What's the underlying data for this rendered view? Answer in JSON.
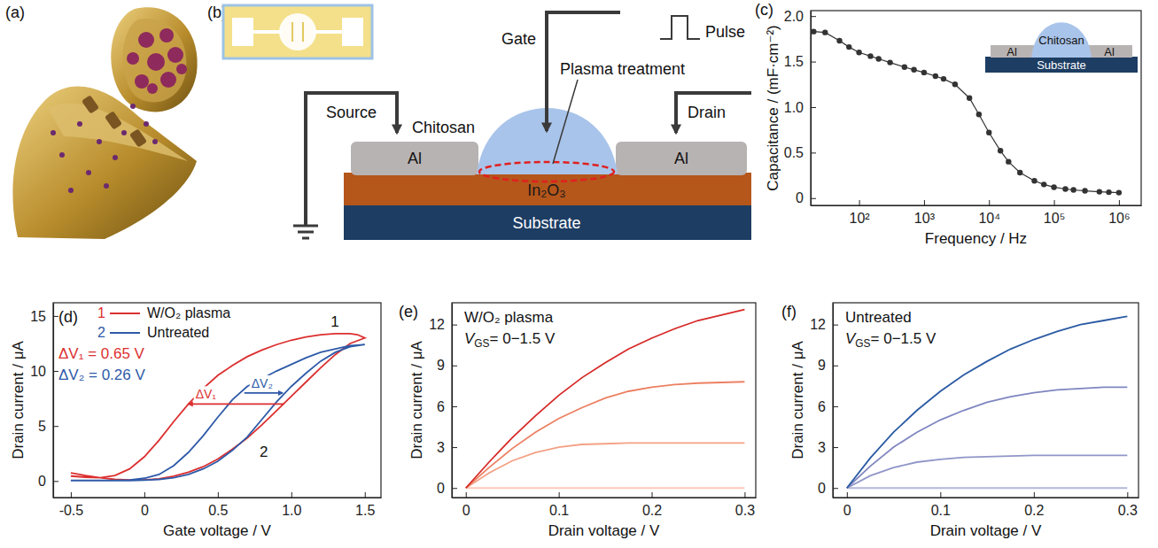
{
  "diagram_a": {
    "panel": "(a)"
  },
  "diagram_b": {
    "panel": "(b)",
    "labels": {
      "source": "Source",
      "gate": "Gate",
      "pulse": "Pulse",
      "plasma": "Plasma treatment",
      "chitosan": "Chitosan",
      "drain": "Drain",
      "al_left": "Al",
      "al_right": "Al",
      "semiconductor": "In₂O₃",
      "substrate": "Substrate"
    }
  },
  "chart_data": [
    {
      "panel": "(c)",
      "type": "line",
      "marker": "circle",
      "color": "#333333",
      "xlabel": "Frequency / Hz",
      "ylabel": "Capacitance / (mF·cm⁻²)",
      "log": "x",
      "x": [
        20,
        30,
        50,
        70,
        100,
        150,
        200,
        300,
        500,
        700,
        1000,
        1500,
        2000,
        3000,
        5000,
        7000,
        10000,
        15000,
        20000,
        30000,
        50000,
        70000,
        100000,
        150000,
        200000,
        300000,
        500000,
        700000,
        1000000
      ],
      "values": [
        1.83,
        1.82,
        1.73,
        1.66,
        1.6,
        1.56,
        1.53,
        1.49,
        1.44,
        1.41,
        1.38,
        1.34,
        1.31,
        1.25,
        1.1,
        0.92,
        0.72,
        0.52,
        0.4,
        0.28,
        0.19,
        0.15,
        0.12,
        0.1,
        0.09,
        0.08,
        0.07,
        0.065,
        0.06
      ],
      "xlim": [
        18,
        2200000
      ],
      "ylim": [
        -0.08,
        2.06
      ],
      "xticks": [
        {
          "value": 100,
          "label": "10²"
        },
        {
          "value": 1000,
          "label": "10³"
        },
        {
          "value": 10000,
          "label": "10⁴"
        },
        {
          "value": 100000,
          "label": "10⁵"
        },
        {
          "value": 1000000,
          "label": "10⁶"
        }
      ],
      "yticks": [
        0,
        0.5,
        {
          "value": 1,
          "label": "1.0"
        },
        1.5,
        {
          "value": 2,
          "label": "2.0"
        }
      ],
      "annotations": [
        "Al",
        "Chitosan",
        "Al",
        "Substrate"
      ]
    },
    {
      "panel": "(d)",
      "type": "line",
      "xlabel": "Gate voltage / V",
      "ylabel": "Drain current / μA",
      "legend": "upper left",
      "x": [
        -0.5,
        -0.4,
        -0.3,
        -0.2,
        -0.1,
        0,
        0.1,
        0.2,
        0.3,
        0.4,
        0.5,
        0.6,
        0.7,
        0.8,
        0.9,
        1.0,
        1.1,
        1.2,
        1.3,
        1.4,
        1.5,
        1.45,
        1.4,
        1.3,
        1.2,
        1.1,
        1.0,
        0.9,
        0.8,
        0.7,
        0.6,
        0.5,
        0.4,
        0.3,
        0.2,
        0.1,
        0,
        -0.1,
        -0.2,
        -0.3,
        -0.4,
        -0.5
      ],
      "series": [
        {
          "name": "W/O₂ plasma",
          "label": "1",
          "color": "#dc2f2f",
          "values": [
            0.75,
            0.5,
            0.3,
            0.15,
            0.1,
            0.1,
            0.2,
            0.45,
            0.8,
            1.3,
            2.0,
            2.9,
            3.9,
            5.1,
            6.4,
            7.7,
            9.0,
            10.3,
            11.5,
            12.5,
            13.0,
            13.3,
            13.4,
            13.4,
            13.3,
            13.1,
            12.8,
            12.4,
            11.9,
            11.3,
            10.5,
            9.6,
            8.4,
            7.0,
            5.4,
            3.7,
            2.2,
            1.1,
            0.5,
            0.3,
            0.35,
            0.45
          ]
        },
        {
          "name": "Untreated",
          "label": "2",
          "color": "#2e5aa8",
          "values": [
            0.05,
            0.05,
            0.05,
            0.05,
            0.05,
            0.08,
            0.15,
            0.3,
            0.6,
            1.1,
            1.8,
            2.8,
            4.0,
            5.6,
            7.2,
            8.6,
            9.8,
            10.9,
            11.7,
            12.2,
            12.4,
            12.35,
            12.3,
            12.0,
            11.7,
            11.2,
            10.6,
            10.0,
            9.3,
            8.6,
            7.4,
            5.8,
            4.1,
            2.6,
            1.4,
            0.6,
            0.25,
            0.1,
            0.05,
            0.05,
            0.05,
            0.05
          ]
        }
      ],
      "annotations": [
        {
          "text": "ΔV₁ = 0.65 V",
          "color": "#dc2f2f"
        },
        {
          "text": "ΔV₂ = 0.26 V",
          "color": "#2e5aa8"
        }
      ],
      "arrows": [
        {
          "label": "ΔV₁",
          "x": [
            0.95,
            0.3
          ],
          "y": 7,
          "color": "#dc2f2f"
        },
        {
          "label": "ΔV₂",
          "x": [
            0.68,
            0.94
          ],
          "y": 8,
          "color": "#2e5aa8"
        }
      ],
      "xlim": [
        -0.62,
        1.61
      ],
      "ylim": [
        -1.5,
        16.2
      ],
      "xticks": [
        -0.5,
        0,
        0.5,
        {
          "value": 1,
          "label": "1.0"
        },
        1.5
      ],
      "yticks": [
        0,
        5,
        10,
        15
      ]
    },
    {
      "panel": "(e)",
      "type": "line",
      "xlabel": "Drain voltage / V",
      "ylabel": "Drain current / μA",
      "annotations": [
        "W/O₂ plasma",
        "VGS= 0−1.5 V"
      ],
      "x": [
        0,
        0.025,
        0.05,
        0.075,
        0.1,
        0.125,
        0.15,
        0.175,
        0.2,
        0.225,
        0.25,
        0.275,
        0.3
      ],
      "series": [
        {
          "color": "#fbc9b8",
          "values": [
            0,
            0,
            0,
            0,
            0,
            0,
            0,
            0,
            0,
            0,
            0,
            0,
            0
          ]
        },
        {
          "color": "#f3a185",
          "values": [
            0,
            1.1,
            2.0,
            2.6,
            3.0,
            3.2,
            3.25,
            3.3,
            3.3,
            3.3,
            3.3,
            3.3,
            3.3
          ]
        },
        {
          "color": "#ec8062",
          "values": [
            0,
            1.5,
            2.9,
            4.1,
            5.1,
            5.9,
            6.6,
            7.1,
            7.4,
            7.6,
            7.7,
            7.75,
            7.8
          ]
        },
        {
          "color": "#d62a28",
          "values": [
            0,
            1.9,
            3.7,
            5.3,
            6.8,
            8.1,
            9.2,
            10.2,
            11.0,
            11.7,
            12.3,
            12.7,
            13.1
          ]
        }
      ],
      "xlim": [
        -0.015,
        0.312
      ],
      "ylim": [
        -0.7,
        13.6
      ],
      "xticks": [
        0,
        0.1,
        0.2,
        0.3
      ],
      "yticks": [
        0,
        3,
        6,
        9,
        12
      ]
    },
    {
      "panel": "(f)",
      "type": "line",
      "xlabel": "Drain voltage / V",
      "ylabel": "Drain current / μA",
      "annotations": [
        "Untreated",
        "VGS= 0−1.5 V"
      ],
      "x": [
        0,
        0.025,
        0.05,
        0.075,
        0.1,
        0.125,
        0.15,
        0.175,
        0.2,
        0.225,
        0.25,
        0.275,
        0.3
      ],
      "series": [
        {
          "color": "#b3b7da",
          "values": [
            0,
            0,
            0,
            0,
            0,
            0,
            0,
            0,
            0,
            0,
            0,
            0,
            0
          ]
        },
        {
          "color": "#9096c8",
          "values": [
            0,
            0.9,
            1.5,
            1.9,
            2.1,
            2.25,
            2.3,
            2.35,
            2.4,
            2.4,
            2.4,
            2.4,
            2.4
          ]
        },
        {
          "color": "#7f86c0",
          "values": [
            0,
            1.6,
            3.0,
            4.1,
            5.0,
            5.7,
            6.3,
            6.7,
            7.0,
            7.2,
            7.3,
            7.4,
            7.4
          ]
        },
        {
          "color": "#2a5aa3",
          "values": [
            0,
            2.2,
            4.1,
            5.7,
            7.1,
            8.3,
            9.3,
            10.2,
            10.9,
            11.5,
            12.0,
            12.3,
            12.6
          ]
        }
      ],
      "xlim": [
        -0.015,
        0.312
      ],
      "ylim": [
        -0.7,
        13.6
      ],
      "xticks": [
        0,
        0.1,
        0.2,
        0.3
      ],
      "yticks": [
        0,
        3,
        6,
        9,
        12
      ]
    }
  ]
}
